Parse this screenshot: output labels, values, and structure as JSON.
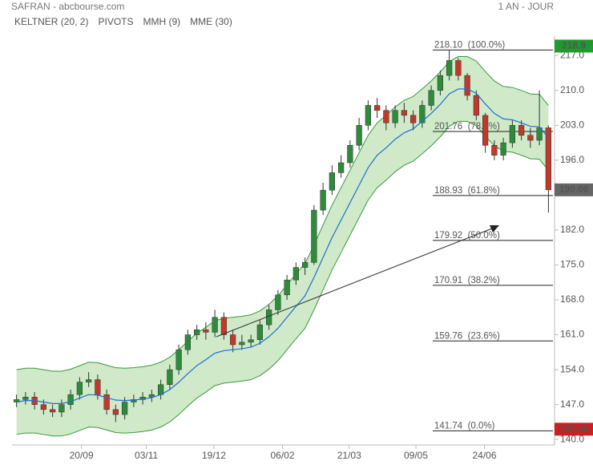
{
  "chart_data": {
    "type": "candlestick",
    "title": "SAFRAN - abcbourse.com",
    "period": "1 AN - JOUR",
    "legend_extra": [
      {
        "name": "PIVOTS",
        "color": "#444444"
      },
      {
        "name": "MMH (9)",
        "color": "#c0392b"
      }
    ],
    "up_color": "#2e8b3a",
    "down_color": "#c0392b",
    "xlim": [
      -0.5,
      59.5
    ],
    "xticks": [
      {
        "value": 7.2,
        "label": "20/09"
      },
      {
        "value": 14.4,
        "label": "03/11"
      },
      {
        "value": 21.9,
        "label": "19/12"
      },
      {
        "value": 29.5,
        "label": "06/02"
      },
      {
        "value": 36.9,
        "label": "21/03"
      },
      {
        "value": 44.3,
        "label": "09/05"
      },
      {
        "value": 51.9,
        "label": "24/06"
      }
    ],
    "ylim": [
      138.9,
      220.9
    ],
    "yticks": [
      {
        "value": 140,
        "label": "140.0"
      },
      {
        "value": 147,
        "label": "147.0"
      },
      {
        "value": 154,
        "label": "154.0"
      },
      {
        "value": 161,
        "label": "161.0"
      },
      {
        "value": 168,
        "label": "168.0"
      },
      {
        "value": 175,
        "label": "175.0"
      },
      {
        "value": 182,
        "label": "182.0"
      },
      {
        "value": 196,
        "label": "196.0"
      },
      {
        "value": 203,
        "label": "203.0"
      },
      {
        "value": 210,
        "label": "210.0"
      },
      {
        "value": 217,
        "label": "217.0"
      }
    ],
    "open": [
      147.5,
      148,
      148.5,
      147,
      146,
      145.5,
      147,
      149,
      151.5,
      152,
      149,
      146,
      145,
      147.5,
      148,
      148.5,
      149,
      151,
      154,
      158,
      161,
      162,
      161.5,
      164.5,
      161,
      159,
      159.5,
      160,
      163,
      166,
      169,
      172,
      174.5,
      175.5,
      186,
      190,
      193.5,
      195.5,
      199,
      203,
      207,
      206,
      203.5,
      206,
      205,
      203.5,
      207,
      210,
      213,
      216,
      213,
      209,
      205,
      199,
      197,
      199.5,
      203,
      201,
      200,
      202.5
    ],
    "high": [
      149,
      149.5,
      149.5,
      148,
      147,
      148,
      150,
      152.5,
      153.5,
      153,
      150,
      147,
      148.5,
      149,
      149.5,
      150,
      152,
      155,
      159,
      162,
      163,
      163.5,
      166,
      165.5,
      162,
      161,
      161,
      164,
      167,
      170,
      173,
      175.5,
      176.5,
      187,
      191.5,
      195,
      197,
      200,
      204.5,
      208,
      208.5,
      207,
      207,
      207.5,
      206,
      208,
      211,
      214,
      218.1,
      216.5,
      213.5,
      210,
      205.5,
      200,
      200.5,
      204,
      204,
      202.5,
      210,
      203
    ],
    "low": [
      146.5,
      147,
      146,
      145,
      144.5,
      144.5,
      146,
      148,
      150.5,
      148,
      145,
      143.5,
      144,
      146.5,
      147,
      147.5,
      148,
      150,
      153,
      157,
      160,
      160,
      160.5,
      160,
      157.5,
      158,
      158.5,
      159,
      162,
      165,
      168,
      171,
      173,
      175,
      185,
      189,
      192.5,
      194.5,
      198,
      202,
      204.5,
      202,
      202.5,
      203.5,
      202,
      202.5,
      206,
      209,
      212,
      212,
      208,
      204,
      197.5,
      196,
      196,
      198.5,
      200,
      198.5,
      199,
      185.5
    ],
    "close": [
      148,
      148.5,
      147,
      146,
      145.5,
      147,
      149,
      151.5,
      152,
      149,
      146,
      145,
      147.5,
      148,
      148.5,
      149,
      151,
      154,
      158,
      161,
      162,
      161.5,
      164.5,
      161,
      159,
      159.5,
      160,
      163,
      166,
      169,
      172,
      174.5,
      175.5,
      186,
      190,
      193.5,
      195.5,
      199,
      203,
      207,
      206,
      203.5,
      206,
      205,
      203.5,
      207,
      210,
      213,
      216,
      213,
      209,
      205,
      199,
      197,
      199.5,
      203,
      201,
      200,
      202.5,
      190.06
    ],
    "keltner": {
      "name": "KELTNER (20, 2)",
      "color": "#3a9a3a",
      "fill": "#cfe9c9",
      "upper": [
        154,
        154.3,
        154.3,
        154,
        153.7,
        153.7,
        154.1,
        154.8,
        155.5,
        155.4,
        154.9,
        154.4,
        154.3,
        154.4,
        154.6,
        154.9,
        155.5,
        156.5,
        158,
        159.7,
        161.3,
        162.5,
        163.8,
        164.3,
        164.5,
        164.7,
        165,
        165.8,
        167.1,
        168.8,
        171,
        173.2,
        175.3,
        179,
        183,
        187,
        190.5,
        194,
        197.5,
        201,
        203.5,
        205,
        206.7,
        208,
        208.8,
        210.3,
        211.9,
        213.7,
        215.8,
        216.8,
        216.8,
        215.9,
        213.8,
        211.9,
        210.8,
        210.6,
        210,
        209.3,
        209.2,
        207
      ],
      "lower": [
        141,
        141.3,
        141.3,
        141,
        140.7,
        140.7,
        141.1,
        141.8,
        142.5,
        142.4,
        141.9,
        141.4,
        141.3,
        141.4,
        141.6,
        141.9,
        142.5,
        143.5,
        145,
        146.7,
        148.3,
        149.5,
        150.8,
        151.3,
        151.5,
        151.7,
        152,
        152.8,
        154.1,
        155.8,
        158,
        160.2,
        162.3,
        166,
        170,
        174,
        177.5,
        181,
        184.5,
        188,
        190.5,
        192,
        193.7,
        195,
        195.8,
        197.3,
        198.9,
        200.7,
        202.8,
        203.8,
        203.8,
        202.9,
        200.8,
        198.9,
        197.8,
        197.6,
        197,
        196.3,
        196.2,
        194
      ]
    },
    "mme": {
      "name": "MME (30)",
      "color": "#1f6fd0",
      "values": [
        147.5,
        147.8,
        147.8,
        147.5,
        147.2,
        147.2,
        147.6,
        148.3,
        149,
        148.9,
        148.4,
        147.9,
        147.8,
        147.9,
        148.1,
        148.4,
        149,
        150,
        151.5,
        153.2,
        154.8,
        156,
        157.3,
        157.8,
        158,
        158.2,
        158.5,
        159.3,
        160.6,
        162.3,
        164.5,
        166.7,
        168.8,
        172.5,
        176.5,
        180.5,
        184,
        187.5,
        191,
        194.5,
        197,
        198.5,
        200.2,
        201.5,
        202.3,
        203.8,
        205.4,
        207.2,
        209.3,
        210.3,
        210.3,
        209.4,
        207.3,
        205.4,
        204.3,
        204.1,
        203.5,
        202.8,
        202.7,
        200.5
      ]
    },
    "fibonacci": [
      {
        "value": 218.1,
        "label": "218.10  (100.0%)"
      },
      {
        "value": 201.76,
        "label": "201.76  (78.6%)"
      },
      {
        "value": 188.93,
        "label": "188.93  (61.8%)"
      },
      {
        "value": 179.92,
        "label": "179.92  (50.0%)"
      },
      {
        "value": 170.91,
        "label": "170.91  (38.2%)"
      },
      {
        "value": 159.76,
        "label": "159.76  (23.6%)"
      },
      {
        "value": 141.74,
        "label": "141.74  (0.0%)"
      }
    ],
    "price_tags": [
      {
        "value": 218.9,
        "color": "#1e9a2e"
      },
      {
        "value": 190.06,
        "color": "#666666"
      },
      {
        "value": 142.06,
        "color": "#cc1f1f"
      }
    ]
  }
}
